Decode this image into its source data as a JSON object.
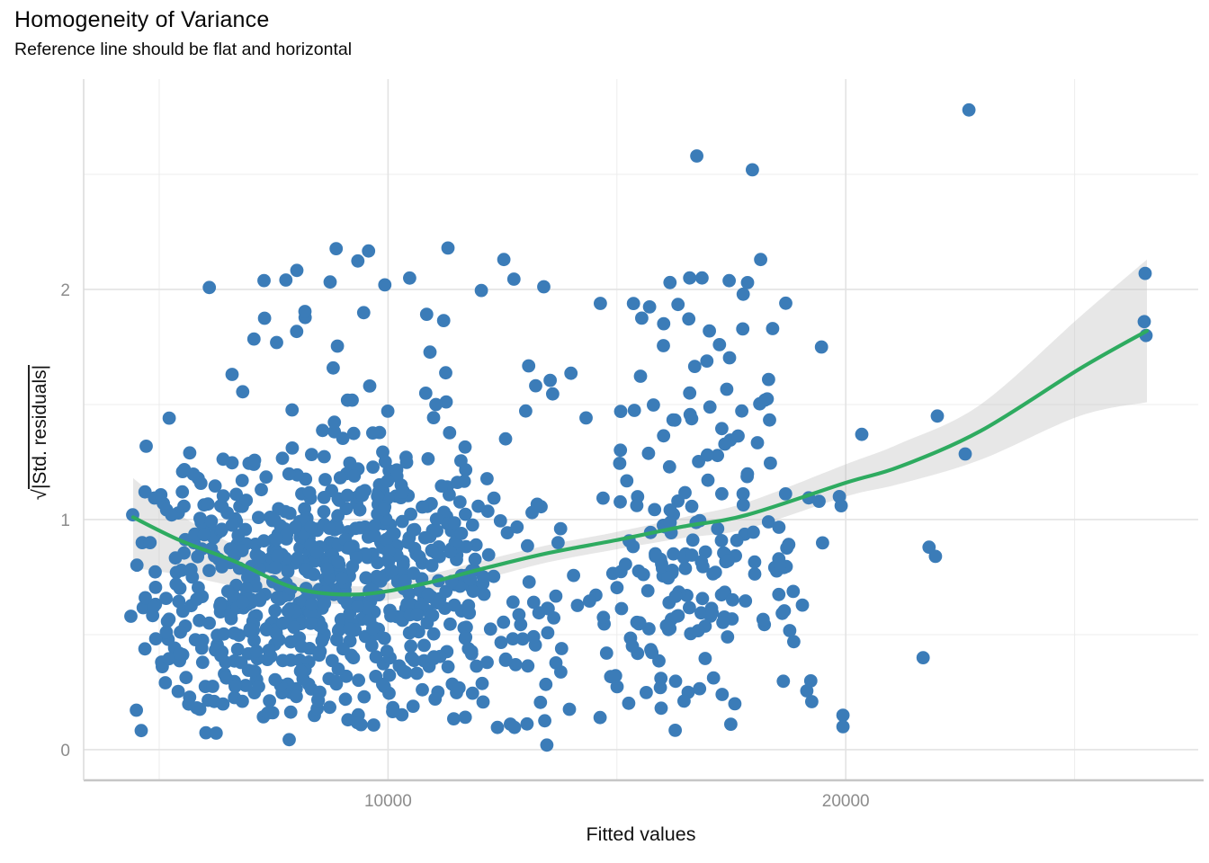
{
  "chart_data": {
    "type": "scatter",
    "title": "Homogeneity of Variance",
    "subtitle": "Reference line should be flat and horizontal",
    "xlabel": "Fitted values",
    "ylabel_sqrt_symbol": "√",
    "ylabel_radicand": "|Std. residuals|",
    "legend": "none",
    "grid": "major+minor",
    "xlim": [
      3350,
      27700
    ],
    "ylim": [
      -0.133,
      2.914
    ],
    "x_ticks": [
      {
        "value": 10000,
        "label": "10000"
      },
      {
        "value": 20000,
        "label": "20000"
      }
    ],
    "y_ticks": [
      {
        "value": 0,
        "label": "0"
      },
      {
        "value": 1,
        "label": "1"
      },
      {
        "value": 2,
        "label": "2"
      }
    ],
    "x_minor_gridlines": [
      5000,
      15000,
      25000
    ],
    "y_minor_gridlines": [
      0.5,
      1.5,
      2.5
    ],
    "colors": {
      "point": "#3B7CB8",
      "smooth_line": "#2EAB60",
      "band": "#bfbfbf",
      "band_opacity": 0.38,
      "grid_major": "#e3e3e3",
      "grid_minor": "#ececec",
      "axis_line_bottom": "#c6c6c6",
      "axis_line_left": "#dadada",
      "tick_label": "#8c8c8c",
      "text": "#0a0a0a"
    },
    "smooth_line": {
      "x": [
        4430,
        5450,
        6630,
        8010,
        9380,
        10760,
        12140,
        13510,
        14970,
        16460,
        17840,
        20000,
        21180,
        22945,
        25110,
        26580
      ],
      "y": [
        1.01,
        0.91,
        0.82,
        0.7,
        0.675,
        0.72,
        0.79,
        0.855,
        0.91,
        0.97,
        1.02,
        1.16,
        1.23,
        1.385,
        1.655,
        1.82
      ]
    },
    "confidence_band": {
      "x": [
        4430,
        5450,
        6630,
        8010,
        9380,
        10760,
        12140,
        13510,
        14970,
        16460,
        17840,
        20000,
        21180,
        22945,
        25110,
        26580
      ],
      "lower": [
        0.79,
        0.76,
        0.71,
        0.65,
        0.635,
        0.68,
        0.745,
        0.815,
        0.87,
        0.92,
        0.96,
        1.1,
        1.155,
        1.26,
        1.45,
        1.51
      ],
      "upper": [
        1.18,
        1.02,
        0.89,
        0.75,
        0.71,
        0.755,
        0.825,
        0.89,
        0.945,
        1.01,
        1.075,
        1.24,
        1.33,
        1.5,
        1.88,
        2.13
      ]
    },
    "notable_points": [
      [
        4690,
        1.12
      ],
      [
        4630,
        0.9
      ],
      [
        4800,
        0.9
      ],
      [
        9930,
        2.02
      ],
      [
        11310,
        2.18
      ],
      [
        12530,
        2.13
      ],
      [
        13470,
        0.02
      ],
      [
        16160,
        2.03
      ],
      [
        16590,
        2.05
      ],
      [
        16860,
        2.05
      ],
      [
        16745,
        2.58
      ],
      [
        17960,
        2.52
      ],
      [
        18140,
        2.13
      ],
      [
        18690,
        1.94
      ],
      [
        17020,
        1.82
      ],
      [
        17240,
        1.76
      ],
      [
        19470,
        1.75
      ],
      [
        19860,
        1.1
      ],
      [
        19900,
        1.06
      ],
      [
        19940,
        0.15
      ],
      [
        19940,
        0.1
      ],
      [
        20350,
        1.37
      ],
      [
        21690,
        0.4
      ],
      [
        21820,
        0.88
      ],
      [
        21960,
        0.84
      ],
      [
        22000,
        1.45
      ],
      [
        22610,
        1.285
      ],
      [
        22690,
        2.78
      ],
      [
        26520,
        1.86
      ],
      [
        26540,
        2.07
      ],
      [
        26560,
        1.8
      ]
    ],
    "points_generator": {
      "seed": 7,
      "point_radius_px": 7.4,
      "clusters": [
        {
          "n": 760,
          "x_mean": 8900,
          "x_sd": 2400,
          "x_min": 4350,
          "x_max": 15300,
          "y_type": "sqrtnorm",
          "y_scale": 0.86,
          "y_min": 0.02,
          "y_max": 2.25
        },
        {
          "n": 48,
          "x_mean": 9800,
          "x_sd": 2700,
          "x_min": 5200,
          "x_max": 15200,
          "y_type": "uniform",
          "y_lo": 1.35,
          "y_hi": 2.2
        },
        {
          "n": 170,
          "x_mean": 16600,
          "x_sd": 1600,
          "x_min": 14900,
          "x_max": 19700,
          "y_type": "sqrtnorm",
          "y_scale": 0.95,
          "y_min": 0.05,
          "y_max": 2.1
        },
        {
          "n": 22,
          "x_mean": 16800,
          "x_sd": 1500,
          "x_min": 15000,
          "x_max": 19600,
          "y_type": "uniform",
          "y_lo": 1.4,
          "y_hi": 2.05
        }
      ]
    }
  }
}
